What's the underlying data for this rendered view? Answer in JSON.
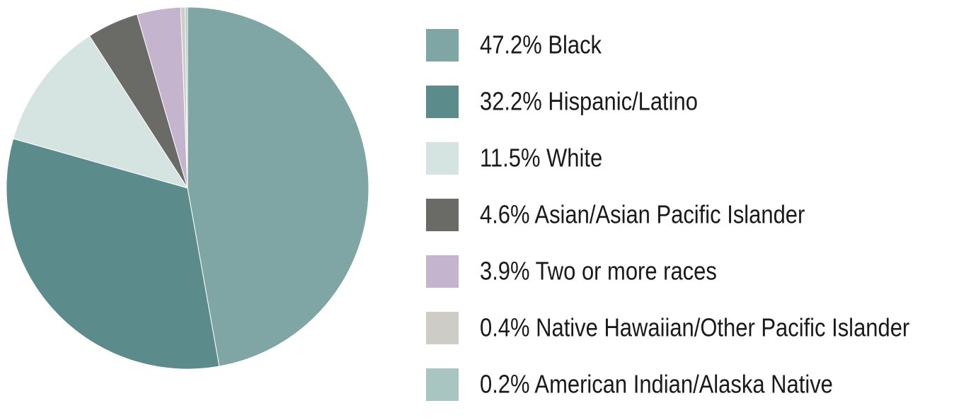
{
  "chart_data": {
    "type": "pie",
    "categories": [
      "47.2% Black",
      "32.2% Hispanic/Latino",
      "11.5% White",
      "4.6% Asian/Asian Pacific Islander",
      "3.9% Two or more races",
      "0.4% Native Hawaiian/Other Pacific Islander",
      "0.2% American Indian/Alaska Native"
    ],
    "values": [
      47.2,
      32.2,
      11.5,
      4.6,
      3.9,
      0.4,
      0.2
    ],
    "colors": [
      "#7fa6a5",
      "#5b8b8a",
      "#d5e4e1",
      "#6a6b67",
      "#c4b4cd",
      "#cdccc7",
      "#a9c5c2"
    ]
  }
}
